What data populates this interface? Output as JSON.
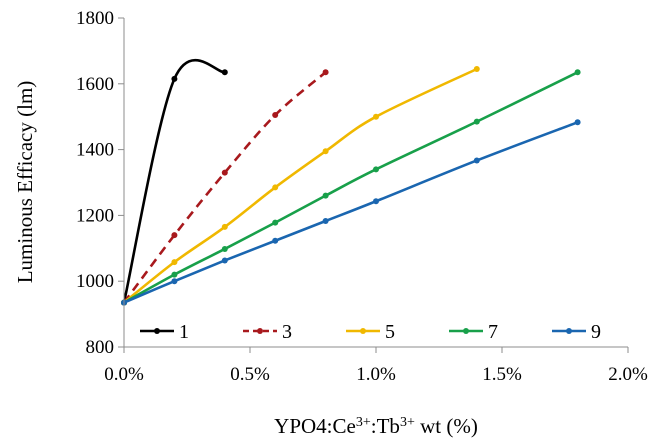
{
  "chart_data": {
    "type": "line",
    "title": "",
    "xlabel_parts": {
      "base": "YPO4:Ce",
      "sup1": "3+",
      "mid": ":Tb",
      "sup2": "3+",
      "end": " wt (%)"
    },
    "ylabel": "Luminous Efficacy (lm)",
    "xlim": [
      0,
      2
    ],
    "ylim": [
      800,
      1800
    ],
    "x_tick_values": [
      0,
      0.5,
      1,
      1.5,
      2
    ],
    "x_tick_labels": [
      "0.0%",
      "0.5%",
      "1.0%",
      "1.5%",
      "2.0%"
    ],
    "y_tick_values": [
      800,
      1000,
      1200,
      1400,
      1600,
      1800
    ],
    "y_tick_labels": [
      "800",
      "1000",
      "1200",
      "1400",
      "1600",
      "1800"
    ],
    "grid": false,
    "legend_placement": "bottom-inside",
    "series": [
      {
        "name": "1",
        "color": "#000000",
        "dash": "solid",
        "x": [
          0,
          0.2,
          0.4
        ],
        "y": [
          935,
          1615,
          1635
        ]
      },
      {
        "name": "3",
        "color": "#a8191d",
        "dash": "dashed",
        "x": [
          0,
          0.2,
          0.4,
          0.6,
          0.8
        ],
        "y": [
          935,
          1140,
          1330,
          1505,
          1635
        ]
      },
      {
        "name": "5",
        "color": "#f0b800",
        "dash": "solid",
        "x": [
          0,
          0.2,
          0.4,
          0.6,
          0.8,
          1.0,
          1.4
        ],
        "y": [
          935,
          1058,
          1165,
          1285,
          1395,
          1500,
          1645
        ]
      },
      {
        "name": "7",
        "color": "#18a04a",
        "dash": "solid",
        "x": [
          0,
          0.2,
          0.4,
          0.6,
          0.8,
          1.0,
          1.4,
          1.8
        ],
        "y": [
          935,
          1020,
          1098,
          1178,
          1260,
          1340,
          1485,
          1635
        ]
      },
      {
        "name": "9",
        "color": "#1a66b0",
        "dash": "solid",
        "x": [
          0,
          0.2,
          0.4,
          0.6,
          0.8,
          1.0,
          1.4,
          1.8
        ],
        "y": [
          935,
          1000,
          1063,
          1123,
          1183,
          1243,
          1367,
          1483
        ]
      }
    ]
  }
}
